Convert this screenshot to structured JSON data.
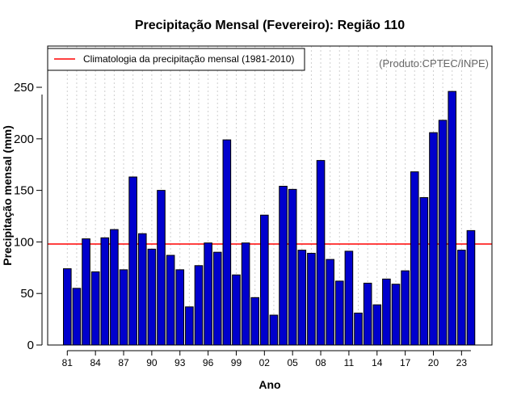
{
  "chart_data": {
    "type": "bar",
    "title": "Precipitação Mensal (Fevereiro): Região 110",
    "xlabel": "Ano",
    "ylabel": "Precipitação mensal (mm)",
    "ylim": [
      0,
      290
    ],
    "yticks": [
      0,
      50,
      100,
      150,
      200,
      250
    ],
    "categories": [
      "81",
      "82",
      "83",
      "84",
      "85",
      "86",
      "87",
      "88",
      "89",
      "90",
      "91",
      "92",
      "93",
      "94",
      "95",
      "96",
      "97",
      "98",
      "99",
      "00",
      "01",
      "02",
      "03",
      "04",
      "05",
      "06",
      "07",
      "08",
      "09",
      "10",
      "11",
      "12",
      "13",
      "14",
      "15",
      "16",
      "17",
      "18",
      "19",
      "20",
      "21",
      "22",
      "23",
      "24"
    ],
    "tick_labels": [
      "81",
      "84",
      "87",
      "90",
      "93",
      "96",
      "99",
      "02",
      "05",
      "08",
      "11",
      "14",
      "17",
      "20",
      "23"
    ],
    "values": [
      74,
      55,
      103,
      71,
      104,
      112,
      73,
      163,
      108,
      93,
      150,
      87,
      73,
      37,
      77,
      99,
      90,
      199,
      68,
      99,
      46,
      126,
      29,
      154,
      151,
      92,
      89,
      179,
      83,
      62,
      91,
      31,
      60,
      39,
      64,
      59,
      72,
      168,
      143,
      206,
      218,
      246,
      92,
      111
    ],
    "reference_line": {
      "label": "Climatologia da precipitação mensal (1981-2010)",
      "value": 98,
      "color": "#ff0000"
    },
    "bar_color": "#0000cd",
    "legend_position": "top-left",
    "credit": "(Produto:CPTEC/INPE)"
  }
}
